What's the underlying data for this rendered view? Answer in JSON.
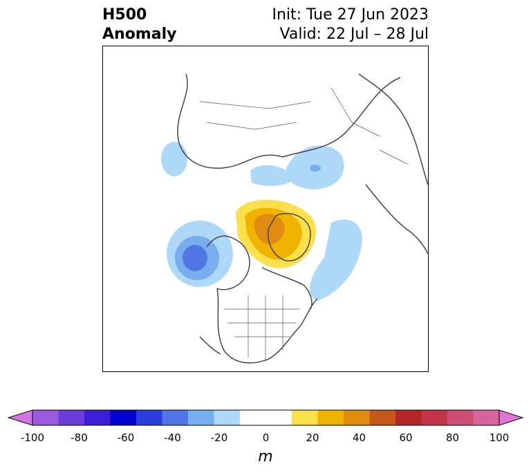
{
  "title": {
    "left_line1": "H500",
    "left_line2": "Anomaly",
    "init": "Init: Tue 27 Jun 2023",
    "valid": "Valid: 22 Jul – 28 Jul"
  },
  "map": {
    "projection": "north-polar",
    "variable": "500 hPa height anomaly",
    "anomaly_regions": [
      {
        "region": "Gulf of Alaska / NE Pacific",
        "sign": "negative",
        "peak_m": -45
      },
      {
        "region": "Bering Sea",
        "sign": "negative",
        "peak_m": -15
      },
      {
        "region": "Northern Siberia / Kara Sea",
        "sign": "negative",
        "peak_m": -25
      },
      {
        "region": "Arctic Siberia coast",
        "sign": "negative",
        "peak_m": -15
      },
      {
        "region": "Greenland / Canadian Arctic",
        "sign": "positive",
        "peak_m": 45
      },
      {
        "region": "North Atlantic / Labrador Sea",
        "sign": "negative",
        "peak_m": -15
      }
    ]
  },
  "colorbar": {
    "units": "m",
    "ticks": [
      "-100",
      "-80",
      "-60",
      "-40",
      "-20",
      "0",
      "20",
      "40",
      "60",
      "80",
      "100"
    ],
    "extend": "both",
    "colors": [
      "#d374e3",
      "#9d58e0",
      "#6b3ddb",
      "#3d1fd6",
      "#0000d0",
      "#2a3fd9",
      "#4f76e3",
      "#78aeee",
      "#add8f7",
      "#ffffff",
      "#ffffff",
      "#fbe04b",
      "#f0b400",
      "#e08c10",
      "#c6591a",
      "#b02828",
      "#c0354a",
      "#cc4d76",
      "#d8649c",
      "#e374d4"
    ]
  }
}
